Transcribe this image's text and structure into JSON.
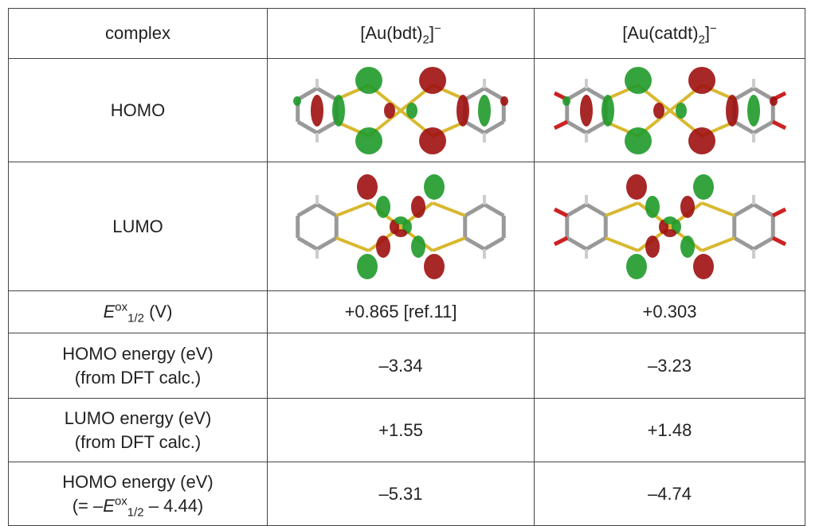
{
  "table": {
    "header": [
      [
        {
          "text": "complex"
        }
      ],
      [
        {
          "text": "[Au(bdt)"
        },
        {
          "text": "2",
          "style": "sub"
        },
        {
          "text": "]"
        },
        {
          "text": "−",
          "style": "sup"
        }
      ],
      [
        {
          "text": "[Au(catdt)"
        },
        {
          "text": "2",
          "style": "sub"
        },
        {
          "text": "]"
        },
        {
          "text": "−",
          "style": "sup"
        }
      ]
    ],
    "rows": [
      {
        "label": [
          [
            {
              "text": "HOMO"
            }
          ]
        ]
      },
      {
        "label": [
          [
            {
              "text": "LUMO"
            }
          ]
        ]
      },
      {
        "label": [
          [
            {
              "text": "E",
              "style": "italic"
            },
            {
              "text": "ox",
              "style": "sup"
            },
            {
              "text": "1/2",
              "style": "sub"
            },
            {
              "text": " (V)"
            }
          ]
        ],
        "values": [
          "+0.865 [ref.11]",
          "+0.303"
        ]
      },
      {
        "label": [
          [
            {
              "text": "HOMO energy (eV)"
            }
          ],
          [
            {
              "text": "(from DFT calc.)"
            }
          ]
        ],
        "values": [
          "–3.34",
          "–3.23"
        ]
      },
      {
        "label": [
          [
            {
              "text": "LUMO energy (eV)"
            }
          ],
          [
            {
              "text": "(from DFT calc.)"
            }
          ]
        ],
        "values": [
          "+1.55",
          "+1.48"
        ]
      },
      {
        "label": [
          [
            {
              "text": "HOMO energy (eV)"
            }
          ],
          [
            {
              "text": "(= –"
            },
            {
              "text": "E",
              "style": "italic"
            },
            {
              "text": "ox",
              "style": "sup"
            },
            {
              "text": "1/2",
              "style": "sub"
            },
            {
              "text": " – 4.44)"
            }
          ]
        ],
        "values": [
          "–5.31",
          "–4.74"
        ]
      }
    ]
  }
}
